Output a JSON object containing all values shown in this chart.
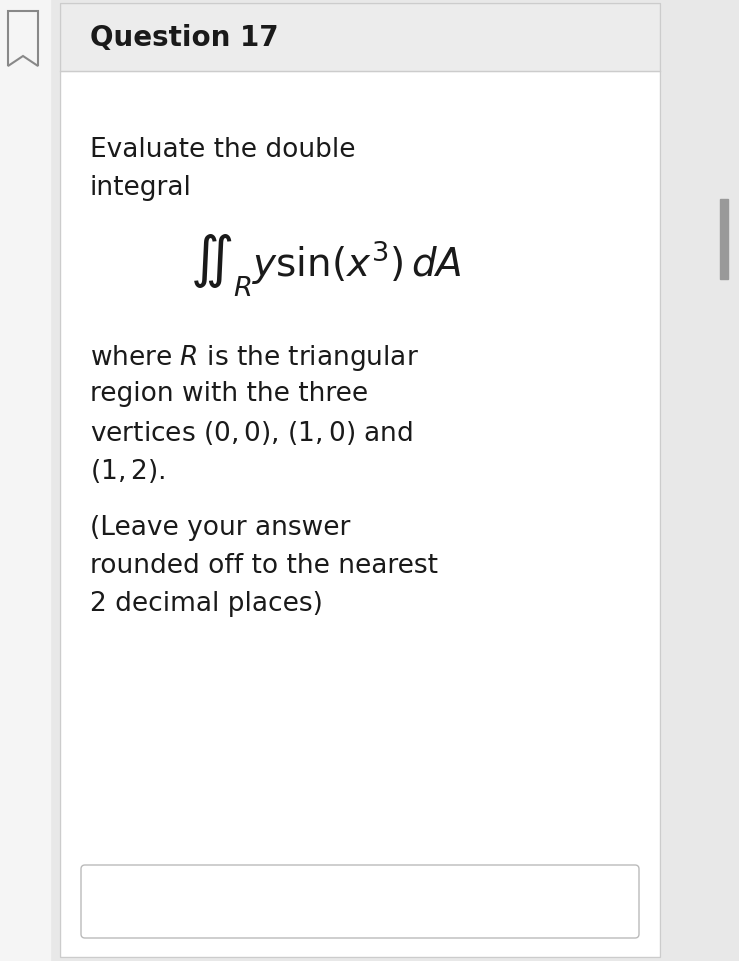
{
  "title": "Question 17",
  "bg_color": "#e8e8e8",
  "card_bg_color": "#ffffff",
  "header_bg_color": "#ececec",
  "title_color": "#1a1a1a",
  "text_color": "#1a1a1a",
  "line1": "Evaluate the double",
  "line2": "integral",
  "formula": "$\\iint_R y\\sin(x^3)\\,dA$",
  "line3": "where $R$ is the triangular",
  "line4": "region with the three",
  "line5": "vertices $(0, 0)$, $(1, 0)$ and",
  "line6": "$(1, 2)$.",
  "line7": "(Leave your answer",
  "line8": "rounded off to the nearest",
  "line9": "2 decimal places)",
  "body_font_size": 19,
  "title_font_size": 20,
  "formula_font_size": 28,
  "left_panel_color": "#f5f5f5",
  "scroll_color": "#999999",
  "border_color": "#cccccc",
  "divider_color": "#cccccc"
}
